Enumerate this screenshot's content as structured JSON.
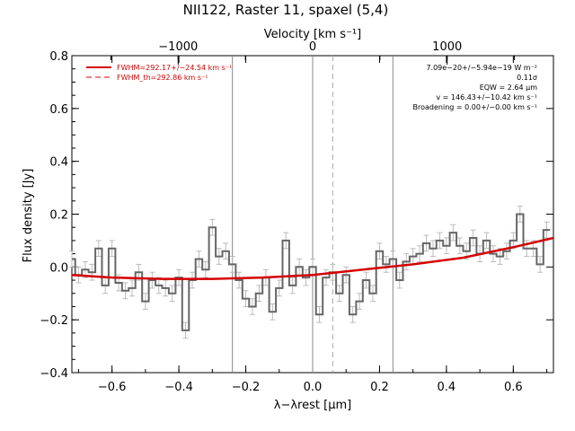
{
  "chart_data": {
    "type": "line",
    "title": "NII122, Raster 11, spaxel (5,4)",
    "xlabel": "λ−λrest [μm]",
    "ylabel": "Flux density [Jy]",
    "top_axis_label": "Velocity [km s⁻¹]",
    "xlim": [
      -0.72,
      0.72
    ],
    "ylim": [
      -0.4,
      0.8
    ],
    "top_xlim": [
      -1790,
      1790
    ],
    "x_ticks": [
      "−0.6",
      "−0.4",
      "−0.2",
      "0.0",
      "0.2",
      "0.4",
      "0.6"
    ],
    "y_ticks": [
      "−0.4",
      "−0.2",
      "0.0",
      "0.2",
      "0.4",
      "0.6",
      "0.8"
    ],
    "top_ticks": [
      "−1000",
      "0",
      "1000"
    ],
    "legend": [
      {
        "label": "FWHM=292.17+/−24.54 km s⁻¹",
        "style": "solid",
        "color": "#d40000"
      },
      {
        "label": "FWHM_th=292.86 km s⁻¹",
        "style": "dashed",
        "color": "#d40000"
      }
    ],
    "annotations": [
      "7.09e−20+/−5.94e−19 W m⁻²",
      "0.11σ",
      "EQW = 2.64 μm",
      "v = 146.43+/−10.42 km s⁻¹",
      "Broadening = 0.00+/−0.00 km s⁻¹"
    ],
    "vertical_lines": [
      {
        "x": -0.24,
        "style": "solid"
      },
      {
        "x": 0.0,
        "style": "solid"
      },
      {
        "x": 0.06,
        "style": "dashed"
      },
      {
        "x": 0.24,
        "style": "solid"
      }
    ],
    "spectrum": {
      "x": [
        -0.72,
        -0.7,
        -0.68,
        -0.66,
        -0.64,
        -0.62,
        -0.6,
        -0.58,
        -0.56,
        -0.54,
        -0.52,
        -0.5,
        -0.48,
        -0.46,
        -0.44,
        -0.42,
        -0.4,
        -0.38,
        -0.36,
        -0.34,
        -0.32,
        -0.3,
        -0.28,
        -0.26,
        -0.24,
        -0.22,
        -0.2,
        -0.18,
        -0.16,
        -0.14,
        -0.12,
        -0.1,
        -0.08,
        -0.06,
        -0.04,
        -0.02,
        0.0,
        0.02,
        0.04,
        0.06,
        0.08,
        0.1,
        0.12,
        0.14,
        0.16,
        0.18,
        0.2,
        0.22,
        0.24,
        0.26,
        0.28,
        0.3,
        0.32,
        0.34,
        0.36,
        0.38,
        0.4,
        0.42,
        0.44,
        0.46,
        0.48,
        0.5,
        0.52,
        0.54,
        0.56,
        0.58,
        0.6,
        0.62,
        0.64,
        0.66,
        0.68,
        0.7
      ],
      "y": [
        0.03,
        -0.03,
        -0.01,
        -0.02,
        0.07,
        -0.07,
        0.07,
        -0.06,
        -0.09,
        -0.08,
        -0.02,
        -0.13,
        -0.05,
        -0.07,
        -0.08,
        -0.1,
        -0.04,
        -0.24,
        -0.05,
        0.03,
        -0.01,
        0.15,
        0.04,
        0.06,
        0.01,
        -0.05,
        -0.12,
        -0.15,
        -0.1,
        -0.04,
        -0.17,
        -0.08,
        0.1,
        -0.07,
        0.0,
        -0.04,
        0.0,
        -0.18,
        -0.04,
        -0.02,
        -0.1,
        -0.03,
        -0.18,
        -0.13,
        -0.05,
        -0.1,
        0.06,
        0.01,
        0.03,
        -0.05,
        0.02,
        0.04,
        0.05,
        0.09,
        0.07,
        0.1,
        0.08,
        0.13,
        0.08,
        0.06,
        0.11,
        0.05,
        0.1,
        0.05,
        0.04,
        0.06,
        0.1,
        0.2,
        0.07,
        0.07,
        0.01,
        0.14
      ],
      "error": 0.03
    },
    "fit_curve": {
      "x": [
        -0.72,
        -0.6,
        -0.45,
        -0.3,
        -0.15,
        0.0,
        0.15,
        0.3,
        0.45,
        0.6,
        0.72
      ],
      "y": [
        -0.03,
        -0.04,
        -0.045,
        -0.045,
        -0.04,
        -0.03,
        -0.01,
        0.01,
        0.035,
        0.075,
        0.11
      ]
    }
  }
}
